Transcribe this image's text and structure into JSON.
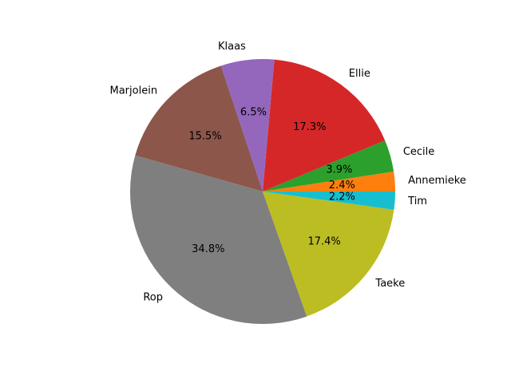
{
  "chart_data": {
    "type": "pie",
    "title": "",
    "start_angle_deg": 0,
    "direction": "counterclockwise",
    "legend": "none",
    "slices": [
      {
        "label": "Annemieke",
        "value": 2.4,
        "pct_label": "2.4%",
        "color": "#ff7f0e"
      },
      {
        "label": "Cecile",
        "value": 3.9,
        "pct_label": "3.9%",
        "color": "#2ca02c"
      },
      {
        "label": "Ellie",
        "value": 17.3,
        "pct_label": "17.3%",
        "color": "#d62728"
      },
      {
        "label": "Klaas",
        "value": 6.5,
        "pct_label": "6.5%",
        "color": "#9467bd"
      },
      {
        "label": "Marjolein",
        "value": 15.5,
        "pct_label": "15.5%",
        "color": "#8c564b"
      },
      {
        "label": "Rop",
        "value": 34.8,
        "pct_label": "34.8%",
        "color": "#7f7f7f"
      },
      {
        "label": "Taeke",
        "value": 17.4,
        "pct_label": "17.4%",
        "color": "#bcbd22"
      },
      {
        "label": "Tim",
        "value": 2.2,
        "pct_label": "2.2%",
        "color": "#17becf"
      }
    ]
  }
}
